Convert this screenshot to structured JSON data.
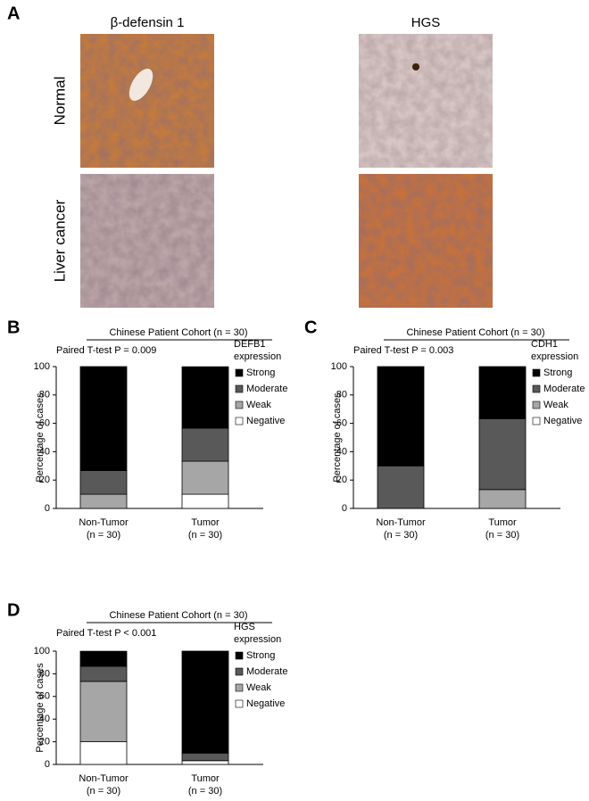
{
  "panel_a": {
    "label": "A",
    "columns": [
      "β-defensin 1",
      "HGS"
    ],
    "rows": [
      "Normal",
      "Liver cancer"
    ]
  },
  "chart_data": [
    {
      "type": "stacked_bar",
      "panel": "B",
      "header": "Chinese Patient Cohort (n = 30)",
      "annotation": "Paired T-test P = 0.009",
      "ylabel": "Percentage of cases",
      "categories": [
        "Non-Tumor",
        "Tumor"
      ],
      "category_notes": [
        "(n = 30)",
        "(n = 30)"
      ],
      "legend_title": [
        "DEFB1",
        "expression"
      ],
      "series": [
        {
          "name": "Strong",
          "color": "#000000",
          "values": [
            73.3,
            43.3
          ]
        },
        {
          "name": "Moderate",
          "color": "#595959",
          "values": [
            16.7,
            23.3
          ]
        },
        {
          "name": "Weak",
          "color": "#a6a6a6",
          "values": [
            10,
            23.3
          ]
        },
        {
          "name": "Negative",
          "color": "#ffffff",
          "values": [
            0,
            10
          ]
        }
      ],
      "ylim": [
        0,
        100
      ],
      "yticks": [
        0,
        20,
        40,
        60,
        80,
        100
      ]
    },
    {
      "type": "stacked_bar",
      "panel": "C",
      "header": "Chinese Patient Cohort (n = 30)",
      "annotation": "Paired T-test P = 0.003",
      "ylabel": "Percentage of cases",
      "categories": [
        "Non-Tumor",
        "Tumor"
      ],
      "category_notes": [
        "(n = 30)",
        "(n = 30)"
      ],
      "legend_title": [
        "CDH1",
        "expression"
      ],
      "series": [
        {
          "name": "Strong",
          "color": "#000000",
          "values": [
            70,
            36.7
          ]
        },
        {
          "name": "Moderate",
          "color": "#595959",
          "values": [
            30,
            50
          ]
        },
        {
          "name": "Weak",
          "color": "#a6a6a6",
          "values": [
            0,
            13.3
          ]
        },
        {
          "name": "Negative",
          "color": "#ffffff",
          "values": [
            0,
            0
          ]
        }
      ],
      "ylim": [
        0,
        100
      ],
      "yticks": [
        0,
        20,
        40,
        60,
        80,
        100
      ]
    },
    {
      "type": "stacked_bar",
      "panel": "D",
      "header": "Chinese Patient Cohort (n = 30)",
      "annotation": "Paired T-test P < 0.001",
      "ylabel": "Percentage of cases",
      "categories": [
        "Non-Tumor",
        "Tumor"
      ],
      "category_notes": [
        "(n = 30)",
        "(n = 30)"
      ],
      "legend_title": [
        "HGS",
        "expression"
      ],
      "series": [
        {
          "name": "Strong",
          "color": "#000000",
          "values": [
            13.3,
            90
          ]
        },
        {
          "name": "Moderate",
          "color": "#595959",
          "values": [
            13.3,
            6.7
          ]
        },
        {
          "name": "Weak",
          "color": "#a6a6a6",
          "values": [
            53.3,
            0
          ]
        },
        {
          "name": "Negative",
          "color": "#ffffff",
          "values": [
            20,
            3.3
          ]
        }
      ],
      "ylim": [
        0,
        100
      ],
      "yticks": [
        0,
        20,
        40,
        60,
        80,
        100
      ]
    }
  ]
}
